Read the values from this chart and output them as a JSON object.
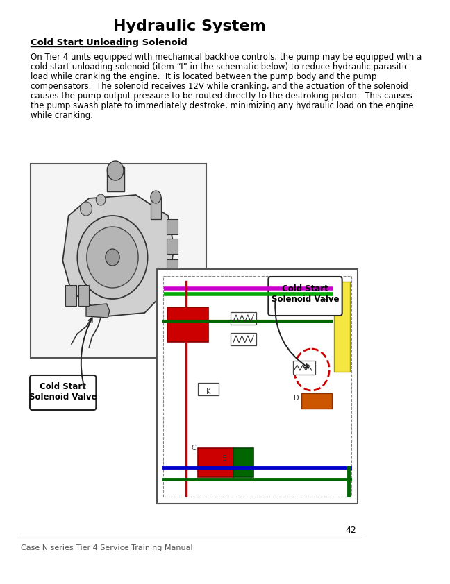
{
  "title": "Hydraulic System",
  "subtitle": "Cold Start Unloading Solenoid",
  "body_text": "On Tier 4 units equipped with mechanical backhoe controls, the pump may be equipped with a\ncold start unloading solenoid (item “L” in the schematic below) to reduce hydraulic parasitic\nload while cranking the engine.  It is located between the pump body and the pump\ncompensators.  The solenoid receives 12V while cranking, and the actuation of the solenoid\ncauses the pump output pressure to be routed directly to the destroking piston.  This causes\nthe pump swash plate to immediately destroke, minimizing any hydraulic load on the engine\nwhile cranking.",
  "page_number": "42",
  "footer_text": "Case N series Tier 4 Service Training Manual",
  "label_left": "Cold Start\nSolenoid Valve",
  "label_right": "Cold Start\nSolenoid Valve",
  "bg_color": "#ffffff",
  "border_color": "#000000",
  "text_color": "#000000"
}
